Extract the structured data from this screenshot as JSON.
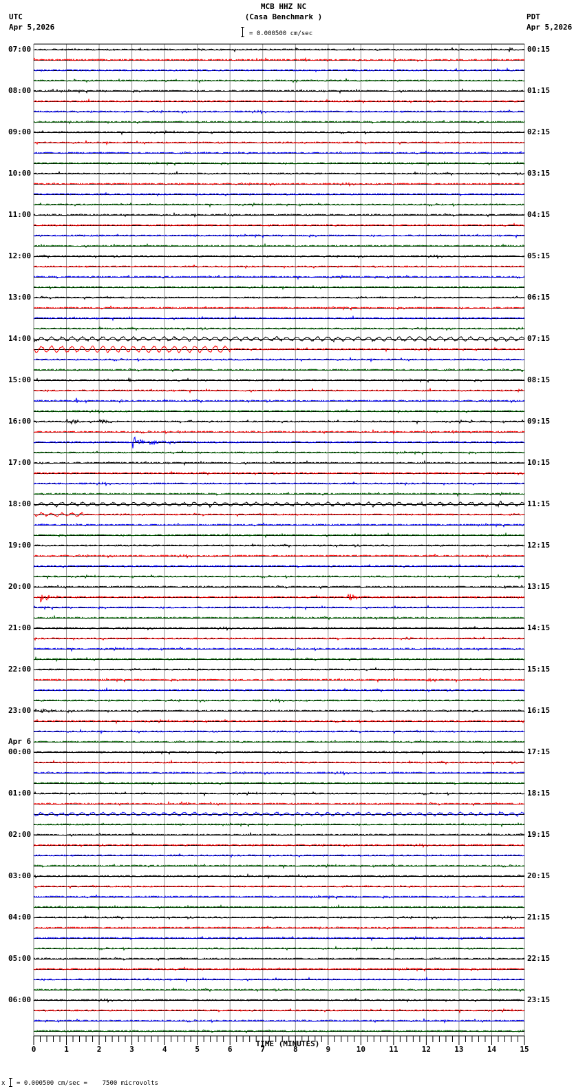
{
  "header": {
    "station": "MCB HHZ NC",
    "site": "(Casa Benchmark )",
    "left_tz": "UTC",
    "left_date": "Apr 5,2026",
    "right_tz": "PDT",
    "right_date": "Apr 5,2026",
    "scale_text": "= 0.000500 cm/sec"
  },
  "footer": {
    "scale_text": "= 0.000500 cm/sec =    7500 microvolts",
    "prefix": "x"
  },
  "axis": {
    "xlabel": "TIME (MINUTES)",
    "ticks": [
      "0",
      "1",
      "2",
      "3",
      "4",
      "5",
      "6",
      "7",
      "8",
      "9",
      "10",
      "11",
      "12",
      "13",
      "14",
      "15"
    ]
  },
  "left_labels": [
    {
      "row": 0,
      "text": "07:00"
    },
    {
      "row": 4,
      "text": "08:00"
    },
    {
      "row": 8,
      "text": "09:00"
    },
    {
      "row": 12,
      "text": "10:00"
    },
    {
      "row": 16,
      "text": "11:00"
    },
    {
      "row": 20,
      "text": "12:00"
    },
    {
      "row": 24,
      "text": "13:00"
    },
    {
      "row": 28,
      "text": "14:00"
    },
    {
      "row": 32,
      "text": "15:00"
    },
    {
      "row": 36,
      "text": "16:00"
    },
    {
      "row": 40,
      "text": "17:00"
    },
    {
      "row": 44,
      "text": "18:00"
    },
    {
      "row": 48,
      "text": "19:00"
    },
    {
      "row": 52,
      "text": "20:00"
    },
    {
      "row": 56,
      "text": "21:00"
    },
    {
      "row": 60,
      "text": "22:00"
    },
    {
      "row": 64,
      "text": "23:00"
    },
    {
      "row": 68,
      "text": "00:00",
      "date": "Apr 6"
    },
    {
      "row": 72,
      "text": "01:00"
    },
    {
      "row": 76,
      "text": "02:00"
    },
    {
      "row": 80,
      "text": "03:00"
    },
    {
      "row": 84,
      "text": "04:00"
    },
    {
      "row": 88,
      "text": "05:00"
    },
    {
      "row": 92,
      "text": "06:00"
    }
  ],
  "right_labels": [
    {
      "row": 0,
      "text": "00:15"
    },
    {
      "row": 4,
      "text": "01:15"
    },
    {
      "row": 8,
      "text": "02:15"
    },
    {
      "row": 12,
      "text": "03:15"
    },
    {
      "row": 16,
      "text": "04:15"
    },
    {
      "row": 20,
      "text": "05:15"
    },
    {
      "row": 24,
      "text": "06:15"
    },
    {
      "row": 28,
      "text": "07:15"
    },
    {
      "row": 32,
      "text": "08:15"
    },
    {
      "row": 36,
      "text": "09:15"
    },
    {
      "row": 40,
      "text": "10:15"
    },
    {
      "row": 44,
      "text": "11:15"
    },
    {
      "row": 48,
      "text": "12:15"
    },
    {
      "row": 52,
      "text": "13:15"
    },
    {
      "row": 56,
      "text": "14:15"
    },
    {
      "row": 60,
      "text": "15:15"
    },
    {
      "row": 64,
      "text": "16:15"
    },
    {
      "row": 68,
      "text": "17:15"
    },
    {
      "row": 72,
      "text": "18:15"
    },
    {
      "row": 76,
      "text": "19:15"
    },
    {
      "row": 80,
      "text": "20:15"
    },
    {
      "row": 84,
      "text": "21:15"
    },
    {
      "row": 88,
      "text": "22:15"
    },
    {
      "row": 92,
      "text": "23:15"
    }
  ],
  "chart_data": {
    "type": "line",
    "title": "MCB HHZ NC (Casa Benchmark )",
    "subtitle": "Helicorder 24h, 15 minutes per line, UTC Apr 5,2026 07:00 - Apr 6,2026 07:00",
    "xlabel": "TIME (MINUTES)",
    "ylabel": "",
    "xlim": [
      0,
      15
    ],
    "x_ticks": [
      0,
      1,
      2,
      3,
      4,
      5,
      6,
      7,
      8,
      9,
      10,
      11,
      12,
      13,
      14,
      15
    ],
    "grid": true,
    "scale": "0.000500 cm/sec = 7500 microvolts",
    "line_colors": [
      "#000000",
      "#ff0000",
      "#0000ff",
      "#006400"
    ],
    "rows": 96,
    "minutes_per_row": 15,
    "noise_amplitude": 1.4,
    "events": [
      {
        "row": 0,
        "minute": 14.5,
        "amp": 6,
        "dur": 0.2,
        "note": "small spike"
      },
      {
        "row": 1,
        "minute": 8.3,
        "amp": 3,
        "dur": 0.1
      },
      {
        "row": 1,
        "minute": 11.0,
        "amp": 5,
        "dur": 0.2
      },
      {
        "row": 2,
        "minute": 12.9,
        "amp": 3,
        "dur": 0.1
      },
      {
        "row": 28,
        "minute": 0,
        "amp": 2.5,
        "dur": 15,
        "kind": "swell"
      },
      {
        "row": 29,
        "minute": 0,
        "amp": 4,
        "dur": 6,
        "kind": "swell"
      },
      {
        "row": 31,
        "minute": 14.9,
        "amp": 5,
        "dur": 0.15
      },
      {
        "row": 32,
        "minute": 0.1,
        "amp": 5,
        "dur": 0.2
      },
      {
        "row": 32,
        "minute": 2.9,
        "amp": 4,
        "dur": 0.3
      },
      {
        "row": 33,
        "minute": 14.8,
        "amp": 4,
        "dur": 0.2
      },
      {
        "row": 34,
        "minute": 1.3,
        "amp": 5,
        "dur": 0.2
      },
      {
        "row": 34,
        "minute": 2.6,
        "amp": 3,
        "dur": 0.3
      },
      {
        "row": 36,
        "minute": 1.0,
        "amp": 4,
        "dur": 1.0
      },
      {
        "row": 36,
        "minute": 2.0,
        "amp": 5,
        "dur": 0.8
      },
      {
        "row": 36,
        "minute": 4.7,
        "amp": 3,
        "dur": 0.3
      },
      {
        "row": 36,
        "minute": 13.3,
        "amp": 5,
        "dur": 0.2
      },
      {
        "row": 37,
        "minute": 4.4,
        "amp": 4,
        "dur": 0.3
      },
      {
        "row": 37,
        "minute": 12.8,
        "amp": 3,
        "dur": 0.4
      },
      {
        "row": 38,
        "minute": 3.0,
        "amp": 14,
        "dur": 0.5,
        "note": "local earthquake"
      },
      {
        "row": 38,
        "minute": 3.5,
        "amp": 5,
        "dur": 1.5,
        "note": "coda"
      },
      {
        "row": 44,
        "minute": 0,
        "amp": 2.2,
        "dur": 15,
        "kind": "swell"
      },
      {
        "row": 44,
        "minute": 14.2,
        "amp": 4,
        "dur": 0.4
      },
      {
        "row": 45,
        "minute": 0,
        "amp": 2,
        "dur": 1.5,
        "kind": "swell"
      },
      {
        "row": 51,
        "minute": 0.6,
        "amp": 5,
        "dur": 0.3
      },
      {
        "row": 52,
        "minute": 14.3,
        "amp": 2,
        "dur": 0.7
      },
      {
        "row": 53,
        "minute": 0.2,
        "amp": 9,
        "dur": 0.8,
        "note": "event"
      },
      {
        "row": 53,
        "minute": 7.2,
        "amp": 3,
        "dur": 0.3
      },
      {
        "row": 53,
        "minute": 9.6,
        "amp": 6,
        "dur": 0.8
      },
      {
        "row": 57,
        "minute": 11.2,
        "amp": 2,
        "dur": 1.0
      },
      {
        "row": 61,
        "minute": 12.0,
        "amp": 2,
        "dur": 1.3
      },
      {
        "row": 64,
        "minute": 0.2,
        "amp": 3,
        "dur": 1.0
      },
      {
        "row": 64,
        "minute": 12.5,
        "amp": 3,
        "dur": 0.4
      },
      {
        "row": 73,
        "minute": 4.5,
        "amp": 3,
        "dur": 0.6
      },
      {
        "row": 74,
        "minute": 0,
        "amp": 2,
        "dur": 15,
        "kind": "swell"
      }
    ]
  }
}
